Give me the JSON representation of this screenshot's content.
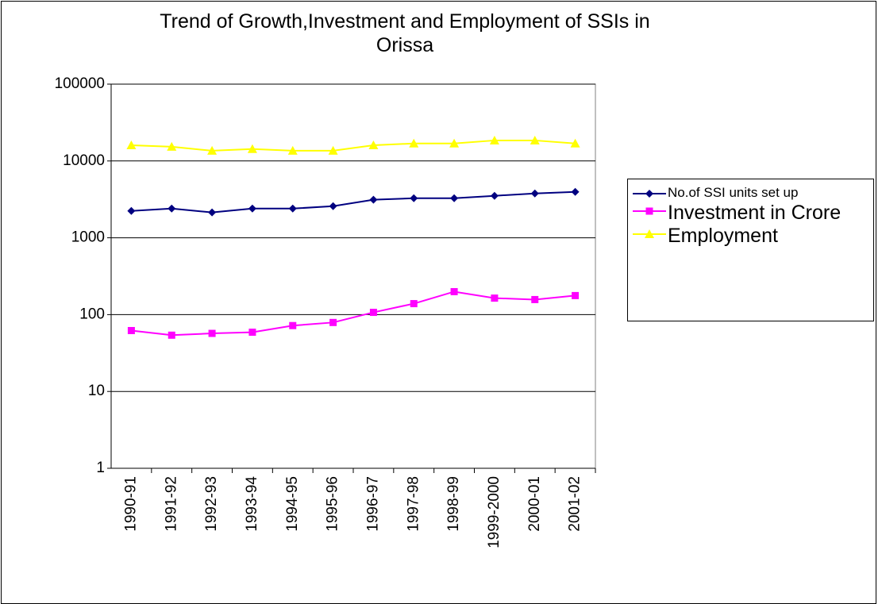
{
  "chart_data": {
    "type": "line",
    "title": "Trend of Growth,Investment and Employment of SSIs in Orissa",
    "categories": [
      "1990-91",
      "1991-92",
      "1992-93",
      "1993-94",
      "1994-95",
      "1995-96",
      "1996-97",
      "1997-98",
      "1998-99",
      "1999-2000",
      "2000-01",
      "2001-02"
    ],
    "series": [
      {
        "name": "No.of SSI units set up",
        "color": "#000080",
        "marker": "diamond",
        "values": [
          2240,
          2400,
          2140,
          2400,
          2400,
          2580,
          3130,
          3270,
          3270,
          3520,
          3780,
          3960
        ]
      },
      {
        "name": "Investment in Crore",
        "color": "#ff00ff",
        "marker": "square",
        "values": [
          62,
          54,
          57,
          59,
          72,
          79,
          107,
          139,
          199,
          164,
          157,
          177
        ]
      },
      {
        "name": "Employment",
        "color": "#ffff00",
        "marker": "triangle",
        "values": [
          16000,
          15300,
          13600,
          14300,
          13600,
          13600,
          16000,
          16900,
          16900,
          18500,
          18500,
          16900
        ]
      }
    ],
    "log_scale": true,
    "ylim": [
      1,
      100000
    ],
    "yticks": [
      1,
      10,
      100,
      1000,
      10000,
      100000
    ],
    "grid": true,
    "legend": "right"
  }
}
